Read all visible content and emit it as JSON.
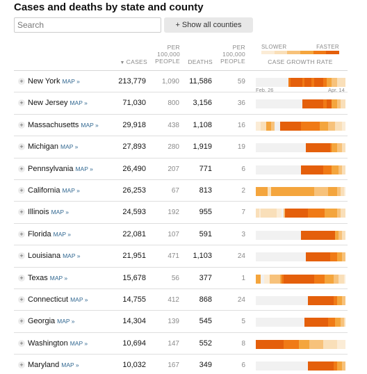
{
  "title": "Cases and deaths by state and county",
  "search": {
    "placeholder": "Search"
  },
  "show_all_label": "+ Show all counties",
  "headers": {
    "cases": "CASES",
    "per_100k_1": [
      "PER",
      "100,000",
      "PEOPLE"
    ],
    "deaths": "DEATHS",
    "per_100k_2": [
      "PER",
      "100,000",
      "PEOPLE"
    ],
    "growth": "CASE GROWTH RATE"
  },
  "legend": {
    "slower": "SLOWER",
    "faster": "FASTER",
    "colors": [
      "#fbecd6",
      "#f9dfb9",
      "#f7c27b",
      "#f4a53d",
      "#f07a16",
      "#e45f0b"
    ]
  },
  "axis": {
    "start": "Feb. 26",
    "end": "Apr. 14"
  },
  "map_label": "MAP »",
  "growth_colors": [
    "#f1f1f1",
    "#fbecd6",
    "#f9dfb9",
    "#f7c27b",
    "#f4a53d",
    "#f07a16",
    "#e45f0b"
  ],
  "rows": [
    {
      "state": "New York",
      "cases": "213,779",
      "per1": "1,090",
      "deaths": "11,586",
      "per2": "59",
      "growth": "0000000000000000000566666665666655666665544433322222"
    },
    {
      "state": "New Jersey",
      "cases": "71,030",
      "per1": "800",
      "deaths": "3,156",
      "per2": "36",
      "growth": "0000000000000000000000000006666666666665566644433222"
    },
    {
      "state": "Massachusetts",
      "cases": "29,918",
      "per1": "438",
      "deaths": "1,108",
      "per2": "16",
      "growth": "1112224443300066666666666655555555555444443333222211"
    },
    {
      "state": "Michigan",
      "cases": "27,893",
      "per1": "280",
      "deaths": "1,919",
      "per2": "19",
      "growth": "0000000000000000000000000000066666666666666544433322"
    },
    {
      "state": "Pennsylvania",
      "cases": "26,490",
      "per1": "207",
      "deaths": "771",
      "per2": "6",
      "growth": "0000000000000000000000000066666666666665555544443322"
    },
    {
      "state": "California",
      "cases": "26,253",
      "per1": "67",
      "deaths": "813",
      "per2": "2",
      "growth": "4444444224444444444444444444444444333333334444433221"
    },
    {
      "state": "Illinois",
      "cases": "24,593",
      "per1": "192",
      "deaths": "955",
      "per2": "7",
      "growth": "2212222222221110366666666666665555555555444444433222"
    },
    {
      "state": "Florida",
      "cases": "22,081",
      "per1": "107",
      "deaths": "591",
      "per2": "3",
      "growth": "0000000000000000000000000066666666666666666666443322"
    },
    {
      "state": "Louisiana",
      "cases": "21,951",
      "per1": "471",
      "deaths": "1,103",
      "per2": "24",
      "growth": "0000000000000000000000000000066666666666666555544433"
    },
    {
      "state": "Texas",
      "cases": "15,678",
      "per1": "56",
      "deaths": "377",
      "per2": "1",
      "growth": "4440011133333345666666666666666666555555444443332221"
    },
    {
      "state": "Connecticut",
      "cases": "14,755",
      "per1": "412",
      "deaths": "868",
      "per2": "24",
      "growth": "0000000000000000000000000000006666666666666665544433"
    },
    {
      "state": "Georgia",
      "cases": "14,304",
      "per1": "139",
      "deaths": "545",
      "per2": "5",
      "growth": "0000000000000000000000000000666666666666665555444332"
    },
    {
      "state": "Washington",
      "cases": "10,694",
      "per1": "147",
      "deaths": "552",
      "per2": "8",
      "growth": "6666666666666666555555555444444333333332222222211111"
    },
    {
      "state": "Maryland",
      "cases": "10,032",
      "per1": "167",
      "deaths": "349",
      "per2": "6",
      "growth": "0000000000000000000000000000006666666666666665544433"
    }
  ]
}
